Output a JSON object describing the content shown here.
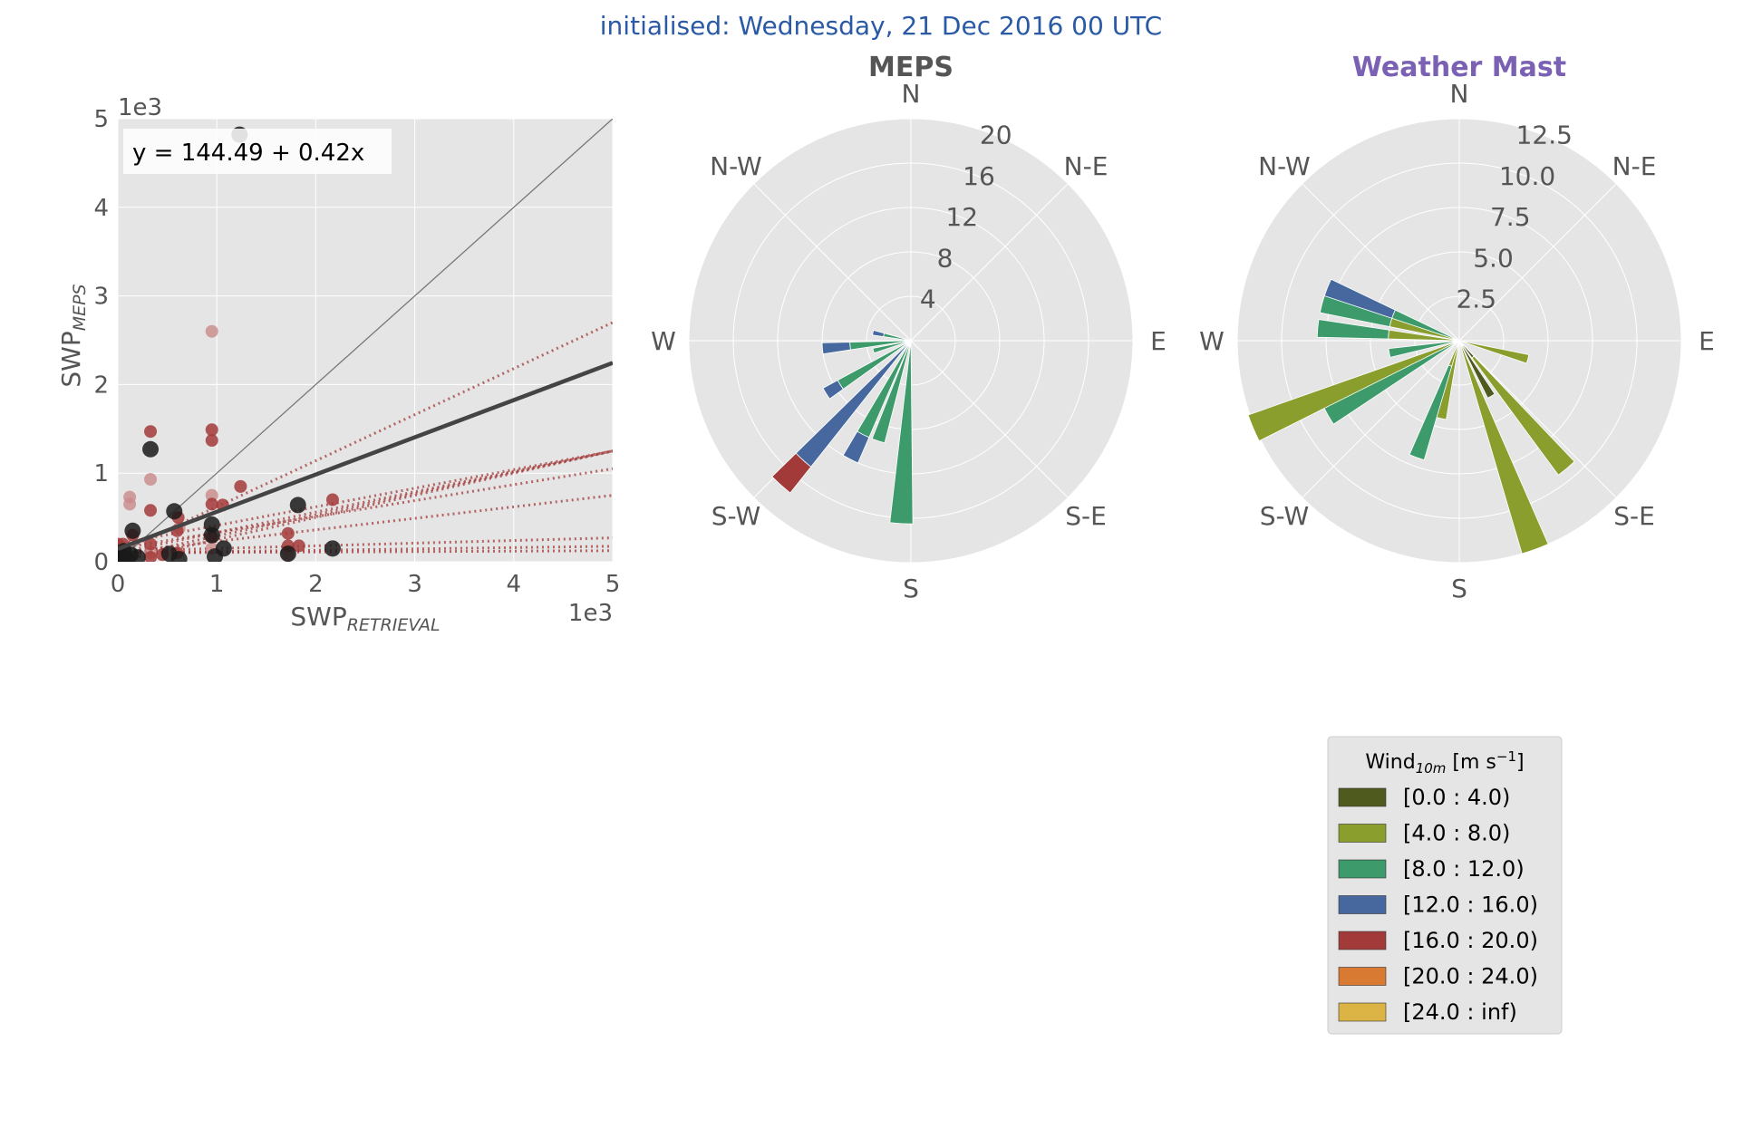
{
  "suptitle": "initialised: Wednesday, 21 Dec 2016 00 UTC",
  "colors": {
    "title_blue": "#2a5aa6",
    "mast_purple": "#7b61b3",
    "meps_grey": "#555555",
    "axes_bg": "#e5e5e5",
    "grid": "#ffffff",
    "tick_text": "#555555",
    "point_black": "#1a1a1a",
    "point_red": "#a33a3a",
    "point_pink": "#c98a8a",
    "fit_line": "#444444",
    "one_to_one": "#777777"
  },
  "chart_data": [
    {
      "type": "scatter",
      "id": "swp",
      "xlabel": "SWP",
      "xlabel_sub": "RETRIEVAL",
      "ylabel": "SWP",
      "ylabel_sub": "MEPS",
      "x_offset_text": "1e3",
      "y_offset_text": "1e3",
      "xlim": [
        0,
        5
      ],
      "ylim": [
        0,
        5
      ],
      "xticks": [
        "0",
        "1",
        "2",
        "3",
        "4",
        "5"
      ],
      "yticks": [
        "0",
        "1",
        "2",
        "3",
        "4",
        "5"
      ],
      "grid": true,
      "annotation": "y = 144.49 + 0.42x",
      "fit_line": {
        "intercept": 0.14449,
        "slope": 0.42
      },
      "one_to_one": true,
      "ensemble_fits": [
        {
          "intercept": 0.1,
          "slope": 0.52
        },
        {
          "intercept": 0.1,
          "slope": 0.23
        },
        {
          "intercept": 0.05,
          "slope": 0.24
        },
        {
          "intercept": 0.0,
          "slope": 0.25
        },
        {
          "intercept": 0.2,
          "slope": 0.21
        },
        {
          "intercept": 0.15,
          "slope": 0.18
        },
        {
          "intercept": 0.1,
          "slope": 0.13
        },
        {
          "intercept": 0.12,
          "slope": 0.03
        },
        {
          "intercept": 0.1,
          "slope": 0.015
        },
        {
          "intercept": 0.1,
          "slope": 0.005
        }
      ],
      "points_black": [
        [
          1.23,
          4.82
        ],
        [
          0.33,
          1.27
        ],
        [
          0.57,
          0.57
        ],
        [
          0.95,
          0.42
        ],
        [
          1.82,
          0.64
        ],
        [
          2.17,
          0.15
        ],
        [
          1.07,
          0.15
        ],
        [
          0.98,
          0.06
        ],
        [
          0.62,
          0.03
        ],
        [
          0.52,
          0.09
        ],
        [
          0.15,
          0.35
        ],
        [
          1.72,
          0.09
        ],
        [
          0.13,
          0.08
        ],
        [
          0.06,
          0.12
        ],
        [
          0.02,
          0.03
        ],
        [
          0.09,
          0.02
        ],
        [
          0.2,
          0.05
        ],
        [
          0.01,
          0.08
        ],
        [
          0.95,
          0.3
        ],
        [
          0.05,
          0.05
        ]
      ],
      "points_red": [
        [
          0.33,
          1.47
        ],
        [
          0.95,
          1.37
        ],
        [
          0.95,
          1.49
        ],
        [
          0.33,
          0.58
        ],
        [
          0.61,
          0.5
        ],
        [
          1.24,
          0.85
        ],
        [
          2.17,
          0.7
        ],
        [
          0.95,
          0.65
        ],
        [
          1.06,
          0.64
        ],
        [
          0.6,
          0.35
        ],
        [
          0.6,
          0.1
        ],
        [
          1.72,
          0.18
        ],
        [
          1.83,
          0.18
        ],
        [
          0.33,
          0.2
        ],
        [
          0.33,
          0.05
        ],
        [
          0.05,
          0.2
        ],
        [
          0.45,
          0.08
        ],
        [
          0.95,
          0.28
        ],
        [
          0.15,
          0.3
        ],
        [
          1.72,
          0.32
        ],
        [
          0.0,
          0.2
        ]
      ],
      "points_pink": [
        [
          0.95,
          2.6
        ],
        [
          0.33,
          0.93
        ],
        [
          0.12,
          0.73
        ],
        [
          0.12,
          0.65
        ],
        [
          0.95,
          0.75
        ],
        [
          1.72,
          0.08
        ],
        [
          1.72,
          0.12
        ],
        [
          0.62,
          0.38
        ],
        [
          0.95,
          0.15
        ],
        [
          0.33,
          0.1
        ]
      ]
    },
    {
      "type": "windrose",
      "id": "meps",
      "title": "MEPS",
      "rmax": 20,
      "ring_labels": [
        "4",
        "8",
        "12",
        "16",
        "20"
      ],
      "ring_values": [
        4,
        8,
        12,
        16,
        20
      ],
      "directions": [
        "N",
        "N-E",
        "E",
        "S-E",
        "S",
        "S-W",
        "W",
        "N-W"
      ],
      "bins": [
        {
          "dir": 183,
          "stack": [
            0,
            0,
            16.5,
            0,
            0
          ]
        },
        {
          "dir": 198,
          "stack": [
            0,
            0,
            9.5,
            0,
            0
          ]
        },
        {
          "dir": 207,
          "stack": [
            0,
            0,
            9.5,
            2.5,
            0
          ]
        },
        {
          "dir": 222,
          "stack": [
            0,
            0,
            0,
            14.5,
            3.0
          ]
        },
        {
          "dir": 238,
          "stack": [
            0,
            0,
            7.5,
            1.5,
            0
          ]
        },
        {
          "dir": 255,
          "stack": [
            0,
            0,
            3.5,
            0,
            0
          ]
        },
        {
          "dir": 265,
          "stack": [
            0,
            0,
            5.5,
            2.5,
            0
          ]
        },
        {
          "dir": 282,
          "stack": [
            0,
            0,
            2.5,
            1.0,
            0
          ]
        }
      ]
    },
    {
      "type": "windrose",
      "id": "mast",
      "title": "Weather Mast",
      "rmax": 12.5,
      "ring_labels": [
        "2.5",
        "5.0",
        "7.5",
        "10.0",
        "12.5"
      ],
      "ring_values": [
        2.5,
        5,
        7.5,
        10,
        12.5
      ],
      "directions": [
        "N",
        "N-E",
        "E",
        "S-E",
        "S",
        "S-W",
        "W",
        "N-W"
      ],
      "bins": [
        {
          "dir": 105,
          "stack": [
            0,
            4.0,
            0,
            0,
            0
          ]
        },
        {
          "dir": 150,
          "stack": [
            3.6,
            0,
            0,
            0,
            0
          ]
        },
        {
          "dir": 140,
          "stack": [
            1.2,
            8.2,
            0,
            0,
            0
          ]
        },
        {
          "dir": 160,
          "stack": [
            0,
            12.5,
            0,
            0,
            0
          ]
        },
        {
          "dir": 193,
          "stack": [
            0,
            4.5,
            0,
            0,
            0
          ]
        },
        {
          "dir": 200,
          "stack": [
            0,
            1.5,
            5.5,
            0,
            0
          ]
        },
        {
          "dir": 240,
          "stack": [
            0,
            0,
            8.5,
            0,
            0
          ]
        },
        {
          "dir": 247,
          "stack": [
            0,
            12.6,
            0,
            0,
            0
          ]
        },
        {
          "dir": 260,
          "stack": [
            0,
            0,
            4.0,
            0,
            0
          ]
        },
        {
          "dir": 275,
          "stack": [
            0,
            4.0,
            4.0,
            0,
            0
          ]
        },
        {
          "dir": 285,
          "stack": [
            0,
            4.0,
            4.0,
            0,
            0
          ]
        },
        {
          "dir": 292,
          "stack": [
            0,
            0,
            4.0,
            4.0,
            0
          ]
        }
      ]
    }
  ],
  "legend": {
    "title": "Wind",
    "title_sub": "10m",
    "title_units": "[m s",
    "title_units_sup": "−1",
    "title_units_end": "]",
    "entries": [
      {
        "label": "[0.0 : 4.0)",
        "color": "#4e5a1e"
      },
      {
        "label": "[4.0 : 8.0)",
        "color": "#8a9e2d"
      },
      {
        "label": "[8.0 : 12.0)",
        "color": "#3d9a6a"
      },
      {
        "label": "[12.0 : 16.0)",
        "color": "#46689e"
      },
      {
        "label": "[16.0 : 20.0)",
        "color": "#a23a3a"
      },
      {
        "label": "[20.0 : 24.0)",
        "color": "#d97a33"
      },
      {
        "label": "[24.0 : inf)",
        "color": "#dcb445"
      }
    ]
  }
}
